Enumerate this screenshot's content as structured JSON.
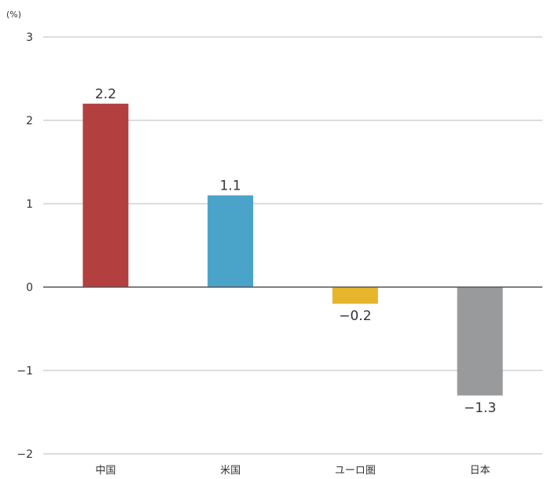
{
  "chart_data": {
    "type": "bar",
    "unit": "(%)",
    "categories": [
      "中国",
      "米国",
      "ユーロ圏",
      "日本"
    ],
    "values": [
      2.2,
      1.1,
      -0.2,
      -1.3
    ],
    "value_labels": [
      "2.2",
      "1.1",
      "−0.2",
      "−1.3"
    ],
    "colors": [
      "#b33f3f",
      "#4aa3c8",
      "#e6b52c",
      "#999a9c"
    ],
    "ylim": [
      -2,
      3
    ],
    "yticks": [
      3,
      2,
      1,
      0,
      -1,
      -2
    ],
    "ytick_labels": [
      "3",
      "2",
      "1",
      "0",
      "−1",
      "−2"
    ],
    "grid": true,
    "legend": "none"
  }
}
